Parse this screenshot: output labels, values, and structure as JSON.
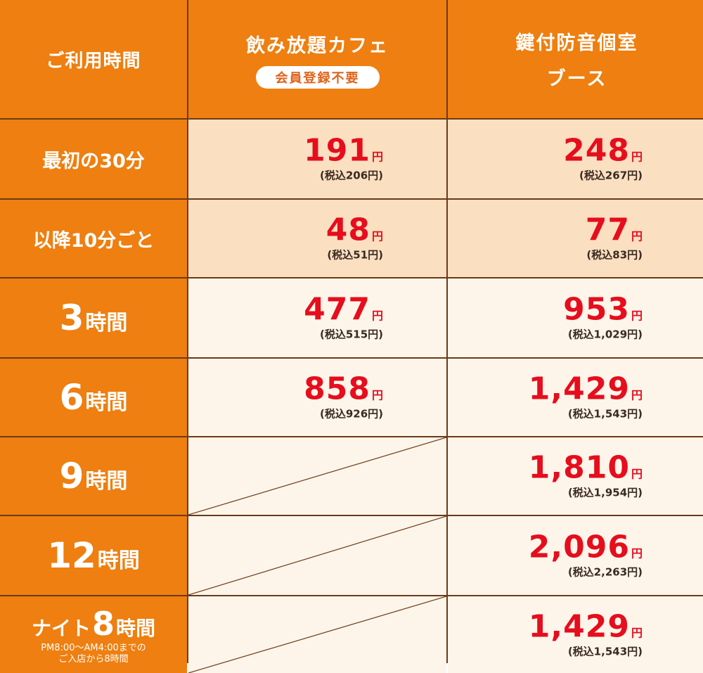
{
  "header": {
    "usage_time": "ご利用時間",
    "col1_title": "飲み放題カフェ",
    "col1_badge": "会員登録不要",
    "col2_title": "鍵付防音個室",
    "col2_sub": "ブース"
  },
  "rows": [
    {
      "label": "最初の30分",
      "cafe": {
        "price": "191",
        "yen": "円",
        "tax": "(税込206円)"
      },
      "booth": {
        "price": "248",
        "yen": "円",
        "tax": "(税込267円)"
      }
    },
    {
      "label": "以降10分ごと",
      "cafe": {
        "price": "48",
        "yen": "円",
        "tax": "(税込51円)"
      },
      "booth": {
        "price": "77",
        "yen": "円",
        "tax": "(税込83円)"
      }
    },
    {
      "label_num": "3",
      "label_unit": "時間",
      "cafe": {
        "price": "477",
        "yen": "円",
        "tax": "(税込515円)"
      },
      "booth": {
        "price": "953",
        "yen": "円",
        "tax": "(税込1,029円)"
      }
    },
    {
      "label_num": "6",
      "label_unit": "時間",
      "cafe": {
        "price": "858",
        "yen": "円",
        "tax": "(税込926円)"
      },
      "booth": {
        "price": "1,429",
        "yen": "円",
        "tax": "(税込1,543円)"
      }
    },
    {
      "label_num": "9",
      "label_unit": "時間",
      "booth": {
        "price": "1,810",
        "yen": "円",
        "tax": "(税込1,954円)"
      }
    },
    {
      "label_num": "12",
      "label_unit": "時間",
      "booth": {
        "price": "2,096",
        "yen": "円",
        "tax": "(税込2,263円)"
      }
    },
    {
      "label_prefix": "ナイト",
      "label_num": "8",
      "label_unit": "時間",
      "note1": "PM8:00～AM4:00までの",
      "note2": "ご入店から8時間",
      "booth": {
        "price": "1,429",
        "yen": "円",
        "tax": "(税込1,543円)"
      }
    }
  ],
  "colors": {
    "orange": "#ee7f10",
    "peach": "#fbdfc1",
    "cream": "#fdf5ea",
    "red": "#e60d1d",
    "border": "#6b3a17"
  }
}
